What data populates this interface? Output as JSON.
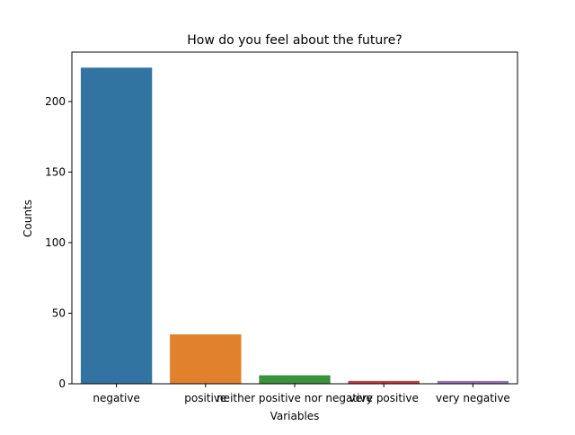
{
  "chart_data": {
    "type": "bar",
    "title": "How do you feel about the future?",
    "xlabel": "Variables",
    "ylabel": "Counts",
    "categories": [
      "negative",
      "positive",
      "neither positive nor negative",
      "very positive",
      "very negative"
    ],
    "values": [
      224,
      35,
      6,
      2,
      2
    ],
    "colors": [
      "#3274a1",
      "#e1812c",
      "#3a923a",
      "#c03d3e",
      "#9372b2"
    ],
    "ylim": [
      0,
      235
    ],
    "yticks": [
      0,
      50,
      100,
      150,
      200
    ],
    "grid": false,
    "legend": "none"
  }
}
